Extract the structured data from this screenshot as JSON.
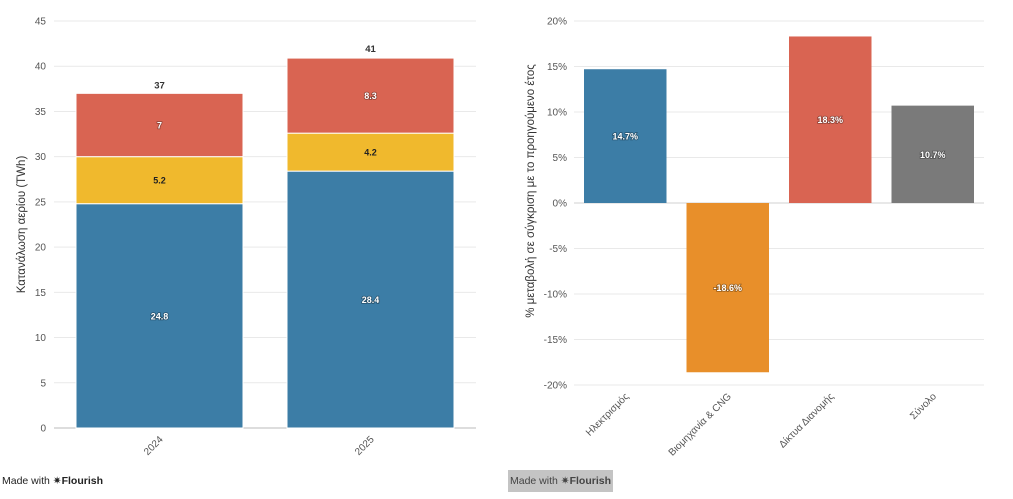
{
  "chart_data": [
    {
      "type": "bar",
      "stacked": true,
      "categories": [
        "2024",
        "2025"
      ],
      "series": [
        {
          "values": [
            24.8,
            28.4
          ],
          "color": "#3c7da6"
        },
        {
          "values": [
            5.2,
            4.2
          ],
          "color": "#f0b92d"
        },
        {
          "values": [
            7,
            8.3
          ],
          "color": "#d96452"
        }
      ],
      "totals": [
        37,
        41
      ],
      "ylabel": "Κατανάλωση αερίου (TWh)",
      "xlabel": "",
      "ylim": [
        0,
        45
      ],
      "yticks": [
        0,
        5,
        10,
        15,
        20,
        25,
        30,
        35,
        40,
        45
      ],
      "grid": true
    },
    {
      "type": "bar",
      "categories": [
        "Ηλεκτρισμός",
        "Βιομηχανία & CNG",
        "Δίκτυα Διανομής",
        "Σύνολο"
      ],
      "values": [
        14.7,
        -18.6,
        18.3,
        10.7
      ],
      "labels": [
        "14.7%",
        "-18.6%",
        "18.3%",
        "10.7%"
      ],
      "colors": [
        "#3c7da6",
        "#e88f2a",
        "#d96452",
        "#7a7a7a"
      ],
      "ylabel": "% μεταβολή σε σύγκριση με το προηγούμενο έτος",
      "xlabel": "",
      "ylim": [
        -20,
        20
      ],
      "yticks": [
        -20,
        -15,
        -10,
        -5,
        0,
        5,
        10,
        15,
        20
      ],
      "ytick_labels": [
        "-20%",
        "-15%",
        "-10%",
        "-5%",
        "0%",
        "5%",
        "10%",
        "15%",
        "20%"
      ],
      "grid": true
    }
  ],
  "badges": {
    "made_with": "Made with",
    "brand": "✷Flourish"
  }
}
